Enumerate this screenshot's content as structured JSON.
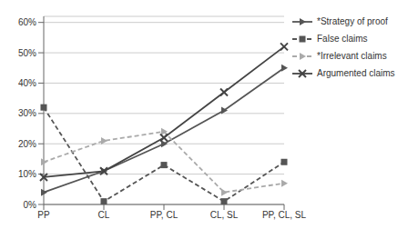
{
  "chart_data": {
    "type": "line",
    "categories": [
      "PP",
      "CL",
      "PP, CL",
      "CL, SL",
      "PP, CL, SL"
    ],
    "series": [
      {
        "name": "*Strategy of proof",
        "color": "#555555",
        "marker": "triangle-right",
        "line_style": "solid",
        "values": [
          0.04,
          0.11,
          0.2,
          0.31,
          0.45
        ]
      },
      {
        "name": "False claims",
        "color": "#555555",
        "marker": "square",
        "line_style": "dashed",
        "values": [
          0.32,
          0.01,
          0.13,
          0.01,
          0.14
        ]
      },
      {
        "name": "*Irrelevant claims",
        "color": "#aaaaaa",
        "marker": "triangle-right",
        "line_style": "dashed",
        "values": [
          0.14,
          0.21,
          0.24,
          0.04,
          0.07
        ]
      },
      {
        "name": "Argumented claims",
        "color": "#444444",
        "marker": "x",
        "line_style": "solid",
        "values": [
          0.09,
          0.11,
          0.22,
          0.37,
          0.52
        ]
      }
    ],
    "ylim": [
      0,
      0.62
    ],
    "yticks": [
      {
        "value": 0.0,
        "label": "0%"
      },
      {
        "value": 0.1,
        "label": "10%"
      },
      {
        "value": 0.2,
        "label": "20%"
      },
      {
        "value": 0.3,
        "label": "30%"
      },
      {
        "value": 0.4,
        "label": "40%"
      },
      {
        "value": 0.5,
        "label": "50%"
      },
      {
        "value": 0.6,
        "label": "60%"
      }
    ],
    "grid": "y",
    "legend": "right"
  }
}
